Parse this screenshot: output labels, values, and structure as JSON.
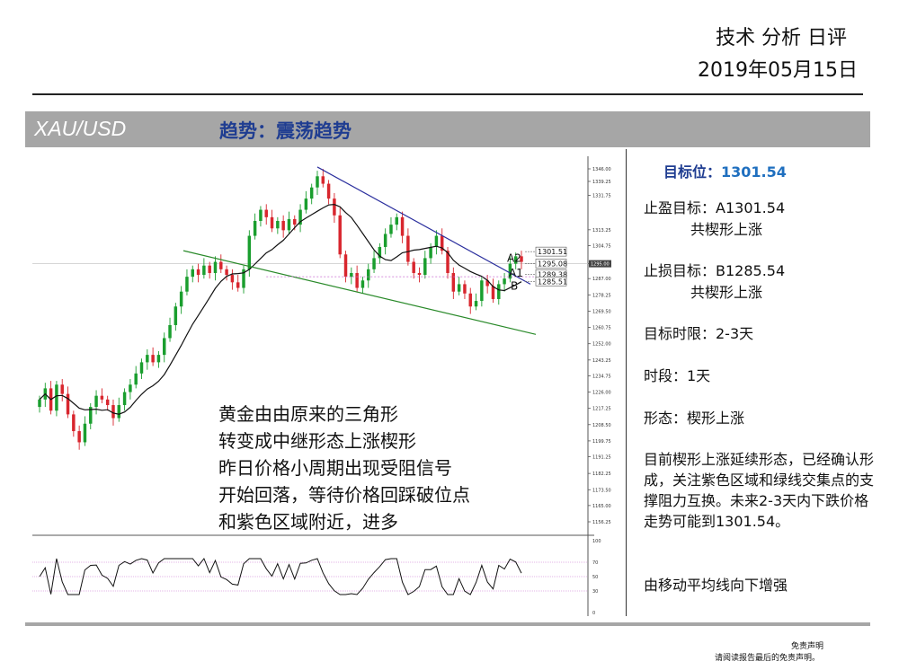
{
  "header": {
    "title": "技术 分析 日评",
    "date": "2019年05月15日"
  },
  "banner": {
    "symbol": "XAU/USD",
    "trend": "趋势：震荡趋势"
  },
  "panel": {
    "target_label": "目标位：",
    "target_value": "1301.54",
    "take_profit_label": "止盈目标：",
    "take_profit_value": "A1301.54",
    "take_profit_sub": "共楔形上涨",
    "stop_loss_label": "止损目标：",
    "stop_loss_value": "B1285.54",
    "stop_loss_sub": "共楔形上涨",
    "time_limit": "目标时限：2-3天",
    "period": "时段：1天",
    "pattern": "形态：楔形上涨",
    "description": "目前楔形上涨延续形态，已经确认形成，关注紫色区域和绿线交集点的支撑阻力互换。未来2-3天内下跌价格走势可能到1301.54。",
    "note": "由移动平均线向下增强"
  },
  "chart_note": {
    "lines": [
      "黄金由由原来的三角形",
      "转变成中继形态上涨楔形",
      "昨日价格小周期出现受阻信号",
      "开始回落，等待价格回踩破位点",
      "和紫色区域附近，进多"
    ]
  },
  "footer": {
    "disclaimer_title": "免责声明",
    "disclaimer_text": "请阅读报告最后的免责声明。"
  },
  "chart_data": {
    "type": "candlestick",
    "ylim": [
      1156.25,
      1346.0
    ],
    "price_ticks": [
      "1346.00",
      "1339.25",
      "1331.75",
      "1313.25",
      "1304.75",
      "1295.00",
      "1287.00",
      "1278.25",
      "1269.50",
      "1260.75",
      "1252.00",
      "1243.25",
      "1234.75",
      "1226.00",
      "1217.25",
      "1208.50",
      "1199.75",
      "1191.25",
      "1182.25",
      "1173.50",
      "1165.00",
      "1156.25"
    ],
    "current_price": "1295.00",
    "price_labels": [
      {
        "label": "1301.51",
        "value": 1301.51
      },
      {
        "label": "1295.08",
        "value": 1295.08
      },
      {
        "label": "1289.38",
        "value": 1289.38
      },
      {
        "label": "1285.51",
        "value": 1285.51
      }
    ],
    "markers": [
      "A2",
      "A1",
      "B"
    ],
    "close": [
      1222,
      1228,
      1216,
      1230,
      1225,
      1214,
      1205,
      1199,
      1209,
      1218,
      1224,
      1222,
      1219,
      1212,
      1219,
      1226,
      1230,
      1236,
      1242,
      1246,
      1242,
      1246,
      1255,
      1262,
      1272,
      1280,
      1288,
      1292,
      1289,
      1294,
      1290,
      1296,
      1292,
      1289,
      1285,
      1282,
      1292,
      1310,
      1318,
      1324,
      1320,
      1314,
      1318,
      1313,
      1319,
      1316,
      1324,
      1330,
      1336,
      1342,
      1338,
      1330,
      1321,
      1300,
      1288,
      1290,
      1282,
      1286,
      1292,
      1298,
      1304,
      1311,
      1316,
      1320,
      1310,
      1296,
      1290,
      1289,
      1298,
      1304,
      1310,
      1302,
      1290,
      1280,
      1284,
      1279,
      1272,
      1275,
      1286,
      1283,
      1276,
      1284,
      1287,
      1295,
      1299,
      1296
    ],
    "rsi": {
      "ylim": [
        0,
        100
      ],
      "levels": [
        70,
        50,
        30
      ]
    }
  }
}
